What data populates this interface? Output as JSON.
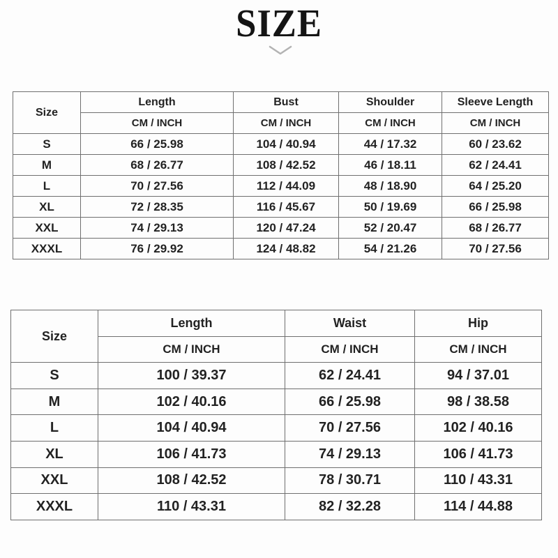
{
  "title": "SIZE",
  "colors": {
    "background": "#fdfdfd",
    "text": "#222222",
    "border": "#6f6f6f",
    "chevron": "#b3b3b3"
  },
  "tables": [
    {
      "name": "top-garment-size-chart",
      "corner_header": "Size",
      "unit_label": "CM / INCH",
      "columns": [
        "Length",
        "Bust",
        "Shoulder",
        "Sleeve Length"
      ],
      "sizes": [
        "S",
        "M",
        "L",
        "XL",
        "XXL",
        "XXXL"
      ],
      "rows": [
        [
          "66 / 25.98",
          "104 / 40.94",
          "44 / 17.32",
          "60 / 23.62"
        ],
        [
          "68 / 26.77",
          "108 / 42.52",
          "46 / 18.11",
          "62 / 24.41"
        ],
        [
          "70 / 27.56",
          "112 / 44.09",
          "48 / 18.90",
          "64 / 25.20"
        ],
        [
          "72 / 28.35",
          "116 / 45.67",
          "50 / 19.69",
          "66 / 25.98"
        ],
        [
          "74 / 29.13",
          "120 / 47.24",
          "52 / 20.47",
          "68 / 26.77"
        ],
        [
          "76 / 29.92",
          "124 / 48.82",
          "54 / 21.26",
          "70 / 27.56"
        ]
      ]
    },
    {
      "name": "bottom-garment-size-chart",
      "corner_header": "Size",
      "unit_label": "CM / INCH",
      "columns": [
        "Length",
        "Waist",
        "Hip"
      ],
      "sizes": [
        "S",
        "M",
        "L",
        "XL",
        "XXL",
        "XXXL"
      ],
      "rows": [
        [
          "100 / 39.37",
          "62 / 24.41",
          "94 / 37.01"
        ],
        [
          "102 / 40.16",
          "66 / 25.98",
          "98 / 38.58"
        ],
        [
          "104 / 40.94",
          "70 / 27.56",
          "102 / 40.16"
        ],
        [
          "106 / 41.73",
          "74 / 29.13",
          "106 / 41.73"
        ],
        [
          "108 / 42.52",
          "78 / 30.71",
          "110 / 43.31"
        ],
        [
          "110 / 43.31",
          "82 / 32.28",
          "114 / 44.88"
        ]
      ]
    }
  ]
}
